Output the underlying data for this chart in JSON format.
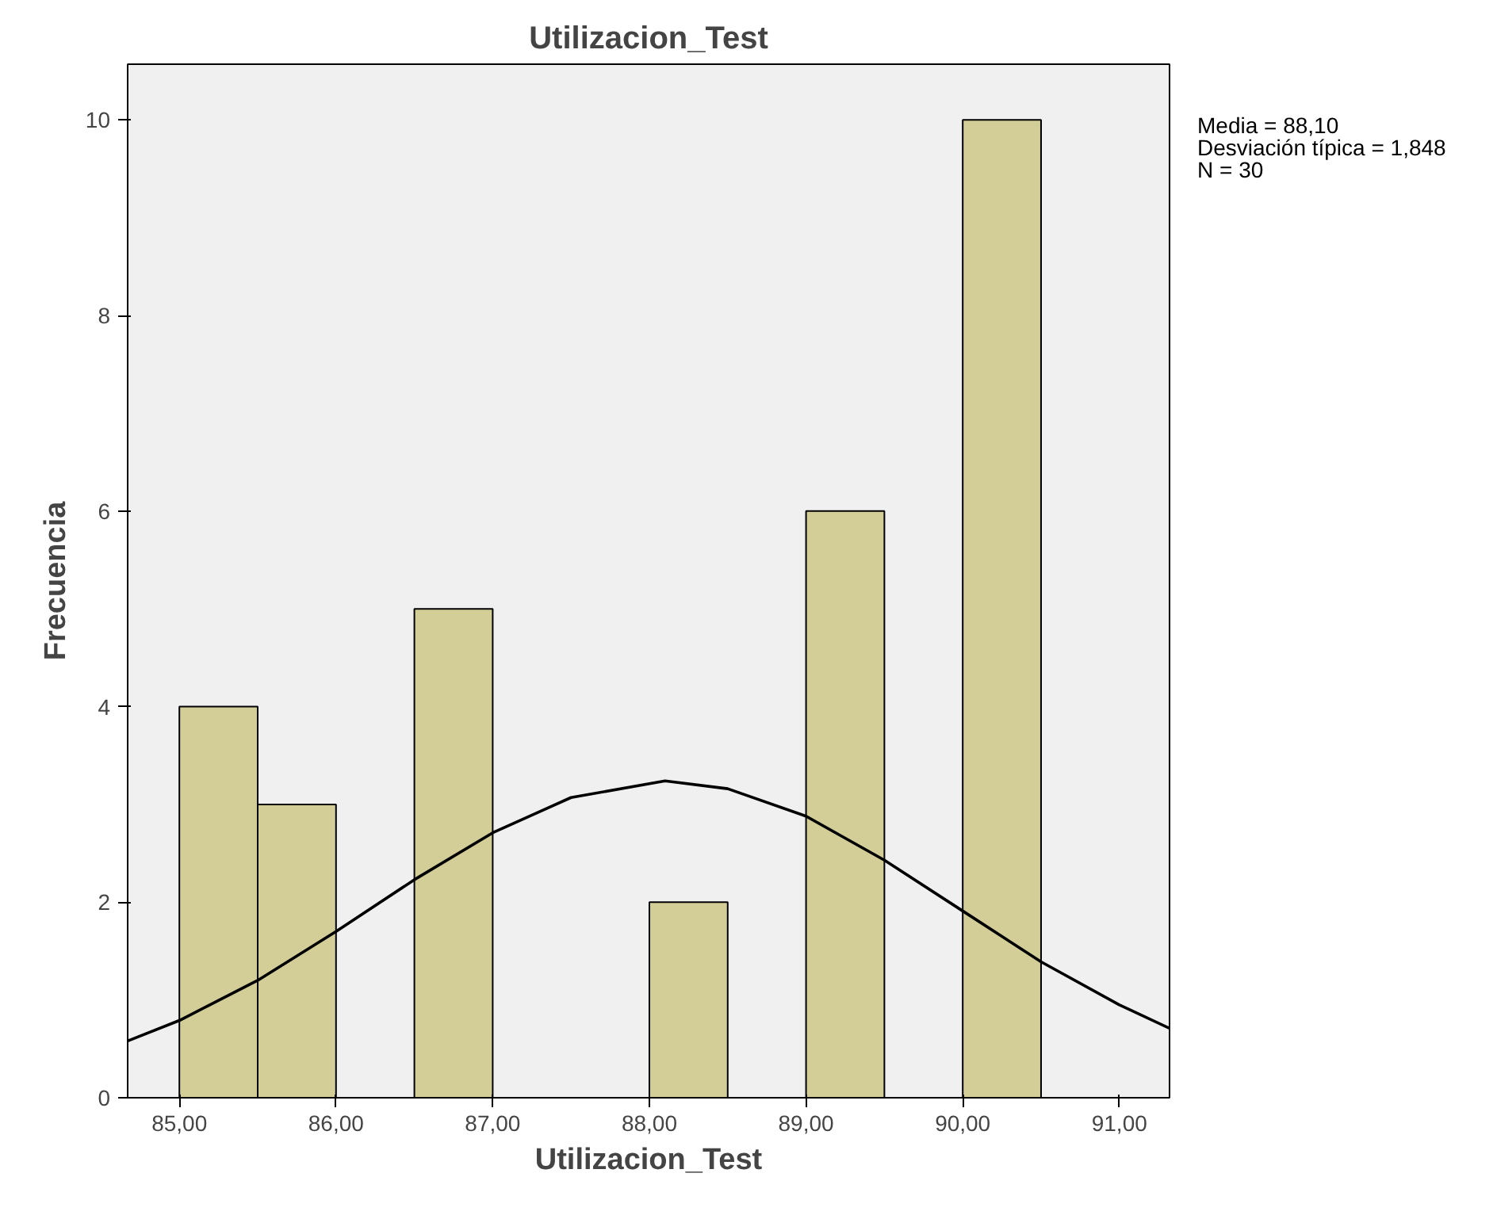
{
  "chart_data": {
    "type": "histogram",
    "title": "Utilizacion_Test",
    "xlabel": "Utilizacion_Test",
    "ylabel": "Frecuencia",
    "bins": [
      85,
      85.5,
      86,
      86.5,
      87,
      87.5,
      88,
      88.5,
      89,
      89.5,
      90,
      90.5
    ],
    "values": [
      4,
      3,
      0,
      5,
      0,
      0,
      2,
      0,
      6,
      0,
      10
    ],
    "color": "#d3ce97",
    "series": [
      {
        "type": "line",
        "color": "#000000",
        "x": [
          84.67,
          85,
          85.5,
          86,
          86.5,
          87,
          87.5,
          88.1,
          88.5,
          89,
          89.5,
          90,
          90.5,
          91,
          91.32
        ],
        "values": [
          0.58,
          0.79,
          1.2,
          1.7,
          2.23,
          2.71,
          3.07,
          3.24,
          3.16,
          2.88,
          2.43,
          1.91,
          1.39,
          0.95,
          0.71
        ]
      }
    ],
    "xlim": [
      84.67,
      91.32
    ],
    "ylim": [
      0,
      10.57
    ],
    "xticks": [
      {
        "value": 85,
        "label": "85,00"
      },
      {
        "value": 86,
        "label": "86,00"
      },
      {
        "value": 87,
        "label": "87,00"
      },
      {
        "value": 88,
        "label": "88,00"
      },
      {
        "value": 89,
        "label": "89,00"
      },
      {
        "value": 90,
        "label": "90,00"
      },
      {
        "value": 91,
        "label": "91,00"
      }
    ],
    "yticks": [
      0,
      2,
      4,
      6,
      8,
      10
    ],
    "grid": false,
    "annotations": [
      "Media = 88,10",
      "Desviación típica = 1,848",
      "N = 30"
    ]
  }
}
